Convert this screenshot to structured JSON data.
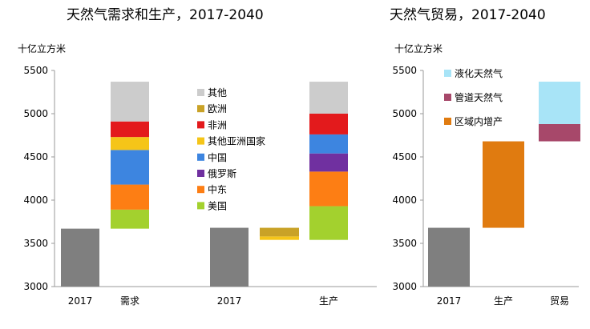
{
  "chart_data": [
    {
      "type": "bar",
      "subtype": "waterfall",
      "title": "天然气需求和生产，2017-2040",
      "ylabel": "十亿立方米",
      "ylim": [
        3000,
        5500
      ],
      "yticks": [
        "3000",
        "3500",
        "4000",
        "4500",
        "5000",
        "5500"
      ],
      "grid": false,
      "legend_position": "center",
      "categories": [
        "2017",
        "需求",
        "2017",
        "生产"
      ],
      "colors": {
        "baseline": "#7f7f7f",
        "其他": "#cccccc",
        "欧洲": "#c9a227",
        "非洲": "#e31a1c",
        "其他亚洲国家": "#f5c518",
        "中国": "#3d85e0",
        "俄罗斯": "#7030a0",
        "中东": "#fd7e14",
        "美国": "#a3d12e"
      },
      "legend": [
        "其他",
        "欧洲",
        "非洲",
        "其他亚洲国家",
        "中国",
        "俄罗斯",
        "中东",
        "美国"
      ],
      "baselines": [
        {
          "category": "2017",
          "value": 3670
        },
        {
          "category": "2017",
          "value": 3680
        }
      ],
      "demand_segments": [
        {
          "name": "美国",
          "from": 3670,
          "to": 3890
        },
        {
          "name": "中东",
          "from": 3890,
          "to": 4180
        },
        {
          "name": "中国",
          "from": 4180,
          "to": 4580
        },
        {
          "name": "其他亚洲国家",
          "from": 4580,
          "to": 4730
        },
        {
          "name": "非洲",
          "from": 4730,
          "to": 4910
        },
        {
          "name": "其他",
          "from": 4910,
          "to": 5370
        }
      ],
      "declines": [
        {
          "name": "其他亚洲国家",
          "from": 3540,
          "to": 3580
        },
        {
          "name": "欧洲",
          "from": 3580,
          "to": 3680
        }
      ],
      "production_segments": [
        {
          "name": "美国",
          "from": 3540,
          "to": 3930
        },
        {
          "name": "中东",
          "from": 3930,
          "to": 4330
        },
        {
          "name": "俄罗斯",
          "from": 4330,
          "to": 4540
        },
        {
          "name": "中国",
          "from": 4540,
          "to": 4760
        },
        {
          "name": "非洲",
          "from": 4760,
          "to": 5000
        },
        {
          "name": "其他",
          "from": 5000,
          "to": 5370
        }
      ]
    },
    {
      "type": "bar",
      "subtype": "waterfall",
      "title": "天然气贸易，2017-2040",
      "ylabel": "十亿立方米",
      "ylim": [
        3000,
        5500
      ],
      "yticks": [
        "3000",
        "3500",
        "4000",
        "4500",
        "5000",
        "5500"
      ],
      "grid": false,
      "legend_position": "top-left",
      "categories": [
        "2017",
        "生产",
        "贸易"
      ],
      "legend": [
        "液化天然气",
        "管道天然气",
        "区域内增产"
      ],
      "colors": {
        "baseline": "#7f7f7f",
        "液化天然气": "#a8e4f7",
        "管道天然气": "#a7486a",
        "区域内增产": "#e07b10"
      },
      "bars": [
        {
          "category": "2017",
          "name": "baseline",
          "from": 3000,
          "to": 3680
        },
        {
          "category": "生产",
          "name": "区域内增产",
          "from": 3680,
          "to": 4680
        },
        {
          "category": "贸易",
          "name": "管道天然气",
          "from": 4680,
          "to": 4880
        },
        {
          "category": "贸易",
          "name": "液化天然气",
          "from": 4880,
          "to": 5370
        }
      ]
    }
  ]
}
